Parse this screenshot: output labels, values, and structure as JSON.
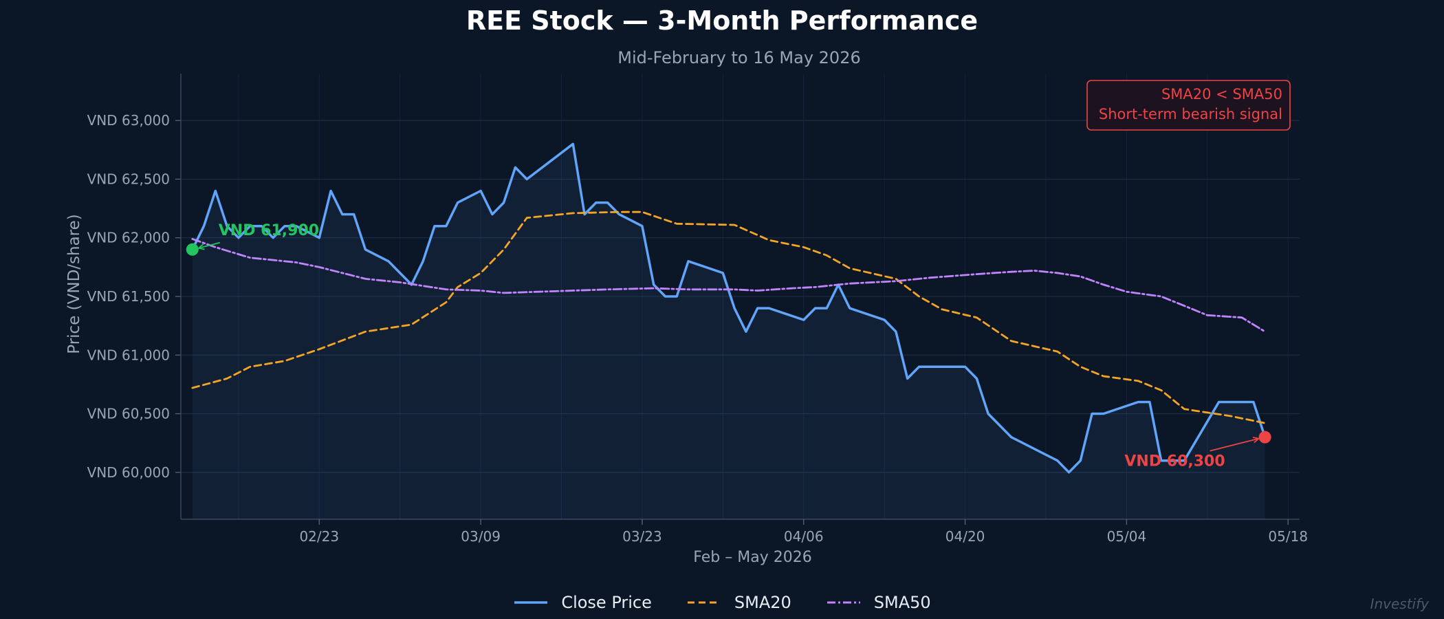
{
  "chart_data": {
    "type": "line",
    "title": "REE Stock — 3-Month Performance",
    "subtitle": "Mid-February to 16 May 2026",
    "xlabel": "Feb – May 2026",
    "ylabel": "Price (VND/share)",
    "x_ticks": [
      "02/23",
      "03/09",
      "03/23",
      "04/06",
      "04/20",
      "05/04",
      "05/18"
    ],
    "y_ticks": [
      "VND 60,000",
      "VND 60,500",
      "VND 61,000",
      "VND 61,500",
      "VND 62,000",
      "VND 62,500",
      "VND 63,000"
    ],
    "y_tick_values": [
      60000,
      60500,
      61000,
      61500,
      62000,
      62500,
      63000
    ],
    "x_tick_dates": [
      "2026-02-23",
      "2026-03-09",
      "2026-03-23",
      "2026-04-06",
      "2026-04-20",
      "2026-05-04",
      "2026-05-18"
    ],
    "xlim": [
      "2026-02-11",
      "2026-05-19"
    ],
    "ylim": [
      59600,
      63400
    ],
    "grid": true,
    "legend_position": "bottom-center",
    "series": [
      {
        "name": "Close Price",
        "color": "#60a5fa",
        "style": "solid",
        "points": [
          [
            "2026-02-12",
            61900
          ],
          [
            "2026-02-13",
            62100
          ],
          [
            "2026-02-14",
            62400
          ],
          [
            "2026-02-15",
            62100
          ],
          [
            "2026-02-16",
            62000
          ],
          [
            "2026-02-17",
            62100
          ],
          [
            "2026-02-18",
            62100
          ],
          [
            "2026-02-19",
            62000
          ],
          [
            "2026-02-20",
            62100
          ],
          [
            "2026-02-21",
            62100
          ],
          [
            "2026-02-23",
            62000
          ],
          [
            "2026-02-24",
            62400
          ],
          [
            "2026-02-25",
            62200
          ],
          [
            "2026-02-26",
            62200
          ],
          [
            "2026-02-27",
            61900
          ],
          [
            "2026-03-01",
            61800
          ],
          [
            "2026-03-02",
            61700
          ],
          [
            "2026-03-03",
            61600
          ],
          [
            "2026-03-04",
            61800
          ],
          [
            "2026-03-05",
            62100
          ],
          [
            "2026-03-06",
            62100
          ],
          [
            "2026-03-07",
            62300
          ],
          [
            "2026-03-09",
            62400
          ],
          [
            "2026-03-10",
            62200
          ],
          [
            "2026-03-11",
            62300
          ],
          [
            "2026-03-12",
            62600
          ],
          [
            "2026-03-13",
            62500
          ],
          [
            "2026-03-17",
            62800
          ],
          [
            "2026-03-18",
            62200
          ],
          [
            "2026-03-19",
            62300
          ],
          [
            "2026-03-20",
            62300
          ],
          [
            "2026-03-21",
            62200
          ],
          [
            "2026-03-23",
            62100
          ],
          [
            "2026-03-24",
            61600
          ],
          [
            "2026-03-25",
            61500
          ],
          [
            "2026-03-26",
            61500
          ],
          [
            "2026-03-27",
            61800
          ],
          [
            "2026-03-30",
            61700
          ],
          [
            "2026-03-31",
            61400
          ],
          [
            "2026-04-01",
            61200
          ],
          [
            "2026-04-02",
            61400
          ],
          [
            "2026-04-03",
            61400
          ],
          [
            "2026-04-06",
            61300
          ],
          [
            "2026-04-07",
            61400
          ],
          [
            "2026-04-08",
            61400
          ],
          [
            "2026-04-09",
            61600
          ],
          [
            "2026-04-10",
            61400
          ],
          [
            "2026-04-13",
            61300
          ],
          [
            "2026-04-14",
            61200
          ],
          [
            "2026-04-15",
            60800
          ],
          [
            "2026-04-16",
            60900
          ],
          [
            "2026-04-20",
            60900
          ],
          [
            "2026-04-21",
            60800
          ],
          [
            "2026-04-22",
            60500
          ],
          [
            "2026-04-24",
            60300
          ],
          [
            "2026-04-28",
            60100
          ],
          [
            "2026-04-29",
            60000
          ],
          [
            "2026-04-30",
            60100
          ],
          [
            "2026-05-01",
            60500
          ],
          [
            "2026-05-02",
            60500
          ],
          [
            "2026-05-05",
            60600
          ],
          [
            "2026-05-06",
            60600
          ],
          [
            "2026-05-07",
            60100
          ],
          [
            "2026-05-08",
            60100
          ],
          [
            "2026-05-09",
            60100
          ],
          [
            "2026-05-12",
            60600
          ],
          [
            "2026-05-13",
            60600
          ],
          [
            "2026-05-15",
            60600
          ],
          [
            "2026-05-16",
            60300
          ]
        ]
      },
      {
        "name": "SMA20",
        "color": "#f5a524",
        "style": "dashed",
        "points": [
          [
            "2026-02-12",
            60720
          ],
          [
            "2026-02-15",
            60800
          ],
          [
            "2026-02-17",
            60900
          ],
          [
            "2026-02-20",
            60950
          ],
          [
            "2026-02-23",
            61050
          ],
          [
            "2026-02-27",
            61200
          ],
          [
            "2026-03-03",
            61260
          ],
          [
            "2026-03-06",
            61450
          ],
          [
            "2026-03-07",
            61580
          ],
          [
            "2026-03-09",
            61700
          ],
          [
            "2026-03-11",
            61900
          ],
          [
            "2026-03-13",
            62170
          ],
          [
            "2026-03-17",
            62210
          ],
          [
            "2026-03-21",
            62220
          ],
          [
            "2026-03-23",
            62220
          ],
          [
            "2026-03-26",
            62120
          ],
          [
            "2026-03-31",
            62110
          ],
          [
            "2026-04-03",
            61980
          ],
          [
            "2026-04-06",
            61920
          ],
          [
            "2026-04-08",
            61850
          ],
          [
            "2026-04-10",
            61740
          ],
          [
            "2026-04-14",
            61650
          ],
          [
            "2026-04-16",
            61500
          ],
          [
            "2026-04-18",
            61390
          ],
          [
            "2026-04-21",
            61320
          ],
          [
            "2026-04-24",
            61120
          ],
          [
            "2026-04-28",
            61030
          ],
          [
            "2026-04-30",
            60900
          ],
          [
            "2026-05-02",
            60820
          ],
          [
            "2026-05-05",
            60780
          ],
          [
            "2026-05-07",
            60700
          ],
          [
            "2026-05-09",
            60540
          ],
          [
            "2026-05-13",
            60480
          ],
          [
            "2026-05-16",
            60420
          ]
        ]
      },
      {
        "name": "SMA50",
        "color": "#c084fc",
        "style": "dashdot",
        "points": [
          [
            "2026-02-12",
            61990
          ],
          [
            "2026-02-14",
            61920
          ],
          [
            "2026-02-17",
            61830
          ],
          [
            "2026-02-21",
            61790
          ],
          [
            "2026-02-23",
            61750
          ],
          [
            "2026-02-27",
            61650
          ],
          [
            "2026-03-02",
            61620
          ],
          [
            "2026-03-06",
            61560
          ],
          [
            "2026-03-09",
            61550
          ],
          [
            "2026-03-11",
            61530
          ],
          [
            "2026-03-17",
            61550
          ],
          [
            "2026-03-20",
            61560
          ],
          [
            "2026-03-24",
            61570
          ],
          [
            "2026-03-27",
            61560
          ],
          [
            "2026-03-31",
            61560
          ],
          [
            "2026-04-02",
            61550
          ],
          [
            "2026-04-05",
            61570
          ],
          [
            "2026-04-07",
            61580
          ],
          [
            "2026-04-10",
            61610
          ],
          [
            "2026-04-14",
            61630
          ],
          [
            "2026-04-17",
            61660
          ],
          [
            "2026-04-21",
            61690
          ],
          [
            "2026-04-24",
            61710
          ],
          [
            "2026-04-26",
            61720
          ],
          [
            "2026-04-28",
            61700
          ],
          [
            "2026-04-30",
            61670
          ],
          [
            "2026-05-02",
            61600
          ],
          [
            "2026-05-04",
            61540
          ],
          [
            "2026-05-07",
            61500
          ],
          [
            "2026-05-09",
            61420
          ],
          [
            "2026-05-11",
            61340
          ],
          [
            "2026-05-14",
            61320
          ],
          [
            "2026-05-16",
            61200
          ]
        ]
      }
    ],
    "annotations": [
      {
        "text": "VND 61,900",
        "date": "2026-02-12",
        "value": 61900,
        "color": "#22c55e",
        "label_side": "upper-right"
      },
      {
        "text": "VND 60,300",
        "date": "2026-05-16",
        "value": 60300,
        "color": "#ef4444",
        "label_side": "lower-left"
      }
    ],
    "signal_box": {
      "lines": [
        "SMA20 < SMA50",
        "Short-term bearish signal"
      ],
      "color": "#ef4444",
      "position": "top-right"
    }
  },
  "footer": {
    "watermark": "Investify"
  }
}
